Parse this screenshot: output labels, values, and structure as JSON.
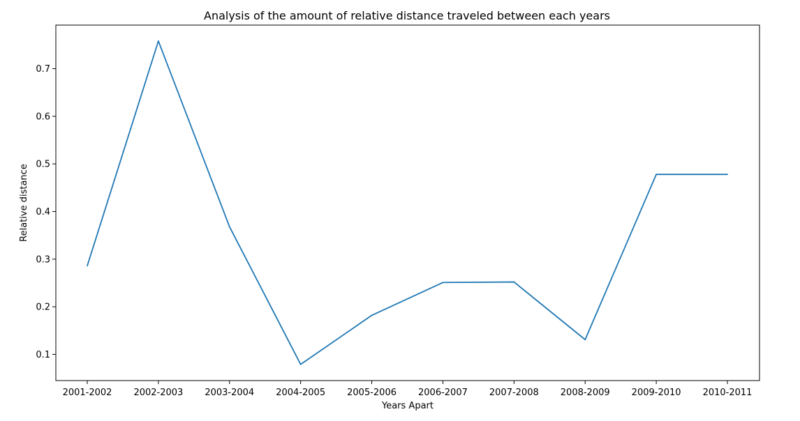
{
  "chart_data": {
    "type": "line",
    "title": "Analysis of the amount of relative distance traveled between each years",
    "xlabel": "Years Apart",
    "ylabel": "Relative distance",
    "categories": [
      "2001-2002",
      "2002-2003",
      "2003-2004",
      "2004-2005",
      "2005-2006",
      "2006-2007",
      "2007-2008",
      "2008-2009",
      "2009-2010",
      "2010-2011"
    ],
    "series": [
      {
        "values": [
          0.286,
          0.758,
          0.368,
          0.079,
          0.182,
          0.251,
          0.252,
          0.131,
          0.478,
          0.478
        ],
        "color": "#1f77b4"
      }
    ],
    "yticks": [
      0.1,
      0.2,
      0.3,
      0.4,
      0.5,
      0.6,
      0.7
    ],
    "ytick_labels": [
      "0.1",
      "0.2",
      "0.3",
      "0.4",
      "0.5",
      "0.6",
      "0.7"
    ],
    "ylim": [
      0.045,
      0.7915
    ],
    "grid": false,
    "legend": "none"
  }
}
